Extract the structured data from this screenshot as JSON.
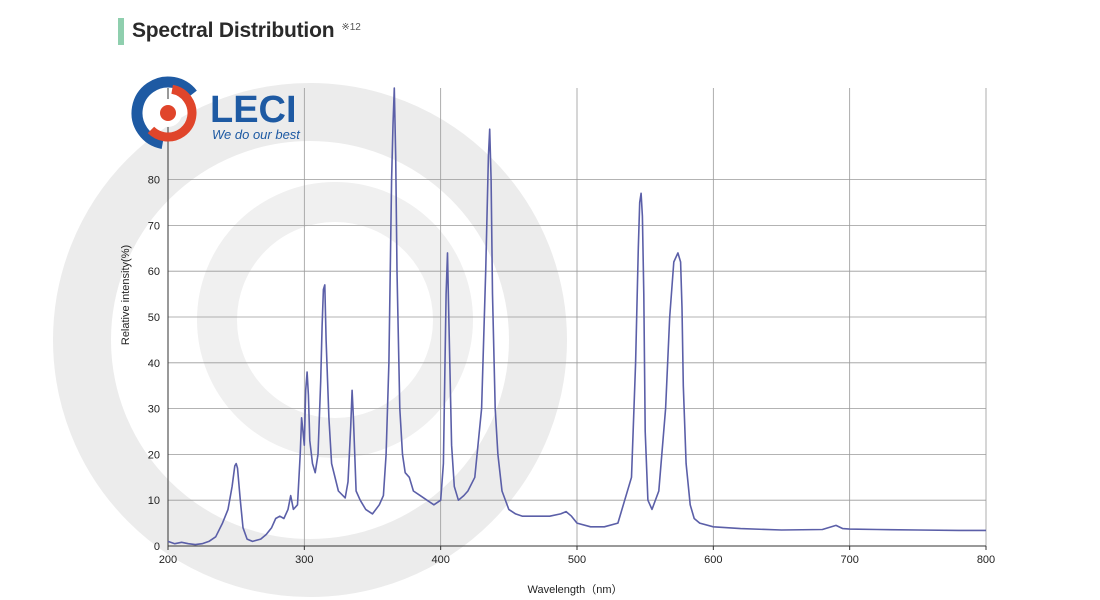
{
  "header": {
    "title": "Spectral Distribution",
    "note": "※12"
  },
  "logo": {
    "name": "LECI",
    "tagline": "We do our best"
  },
  "colors": {
    "line": "#5b5fa8",
    "grid": "#9a9a9a",
    "accent": "#8fcfae",
    "watermark": "#eaeaea",
    "logo_blue": "#1e5aa3",
    "logo_red": "#e0452b"
  },
  "chart_data": {
    "type": "line",
    "xlabel": "Wavelength（nm）",
    "ylabel": "Relative intensity(%)",
    "xlim": [
      200,
      800
    ],
    "ylim": [
      0,
      100
    ],
    "x_ticks": [
      200,
      300,
      400,
      500,
      600,
      700,
      800
    ],
    "y_ticks": [
      0,
      10,
      20,
      30,
      40,
      50,
      60,
      70,
      80
    ],
    "grid": true,
    "series": [
      {
        "x": [
          200,
          205,
          210,
          215,
          220,
          225,
          230,
          235,
          240,
          244,
          247,
          249,
          250,
          251,
          253,
          255,
          258,
          262,
          268,
          272,
          276,
          279,
          282,
          285,
          288,
          290,
          292,
          295,
          297,
          298,
          299,
          300,
          301,
          302,
          303,
          304,
          306,
          308,
          310,
          312,
          313,
          314,
          315,
          316,
          318,
          320,
          325,
          330,
          332,
          334,
          335,
          336,
          338,
          341,
          345,
          350,
          355,
          358,
          360,
          362,
          364,
          365,
          366,
          367,
          368,
          370,
          372,
          374,
          377,
          380,
          385,
          390,
          395,
          400,
          402,
          404,
          405,
          406,
          408,
          410,
          413,
          417,
          420,
          425,
          430,
          433,
          435,
          436,
          437,
          438,
          440,
          442,
          445,
          450,
          455,
          460,
          470,
          480,
          488,
          492,
          496,
          500,
          510,
          520,
          530,
          540,
          543,
          545,
          546,
          547,
          548,
          549,
          550,
          552,
          555,
          560,
          565,
          568,
          571,
          574,
          576,
          577,
          578,
          580,
          583,
          586,
          590,
          600,
          620,
          650,
          680,
          690,
          695,
          700,
          720,
          750,
          780,
          800
        ],
        "y": [
          1,
          0.5,
          0.8,
          0.5,
          0.3,
          0.5,
          1,
          2,
          5,
          8,
          13,
          17.5,
          18,
          17,
          10,
          4,
          1.5,
          1,
          1.5,
          2.5,
          4,
          6,
          6.5,
          6,
          8,
          11,
          8,
          9,
          20,
          28,
          25,
          22,
          34,
          38,
          33,
          23,
          18,
          16,
          20,
          36,
          48,
          56,
          57,
          45,
          28,
          18,
          12,
          10.5,
          14,
          26,
          34,
          28,
          12,
          10,
          8,
          7,
          9,
          11,
          20,
          40,
          80,
          92,
          100,
          85,
          60,
          30,
          20,
          16,
          15,
          12,
          11,
          10,
          9,
          10,
          18,
          55,
          64,
          50,
          22,
          13,
          10,
          11,
          12,
          15,
          30,
          60,
          85,
          91,
          80,
          55,
          30,
          20,
          12,
          8,
          7,
          6.5,
          6.5,
          6.5,
          7,
          7.5,
          6.5,
          5,
          4.2,
          4.2,
          5,
          15,
          40,
          65,
          75,
          77,
          72,
          55,
          25,
          10,
          8,
          12,
          30,
          50,
          62,
          64,
          62,
          52,
          35,
          18,
          9,
          6,
          5,
          4.2,
          3.8,
          3.5,
          3.6,
          4.5,
          3.8,
          3.7,
          3.6,
          3.5,
          3.4,
          3.4
        ]
      }
    ]
  }
}
